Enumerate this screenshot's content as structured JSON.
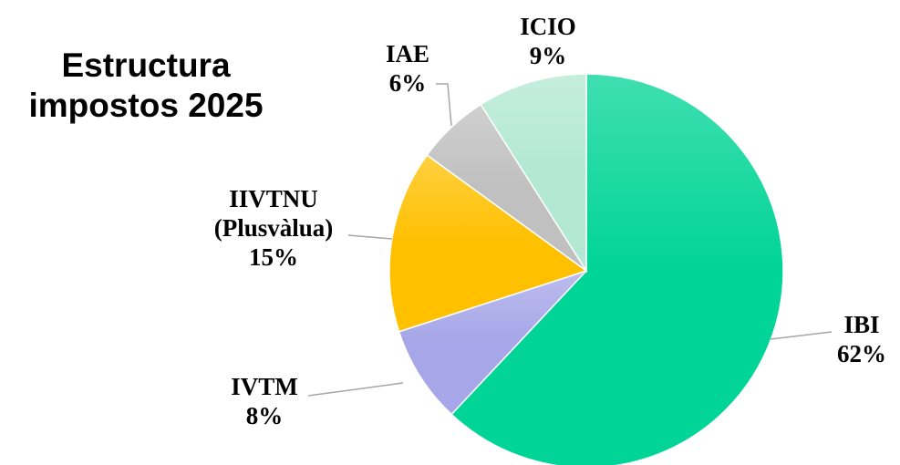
{
  "chart_data": {
    "type": "pie",
    "title": "Estructura impostos 2025",
    "categories": [
      "IBI",
      "IVTM",
      "IIVTNU (Plusvàlua)",
      "IAE",
      "ICIO"
    ],
    "values": [
      62,
      8,
      15,
      6,
      9
    ],
    "value_labels": [
      "62%",
      "8%",
      "15%",
      "6%",
      "9%"
    ],
    "colors": [
      "#00d496",
      "#a6a6e8",
      "#ffc000",
      "#c0c0c0",
      "#b2e8d4"
    ]
  }
}
